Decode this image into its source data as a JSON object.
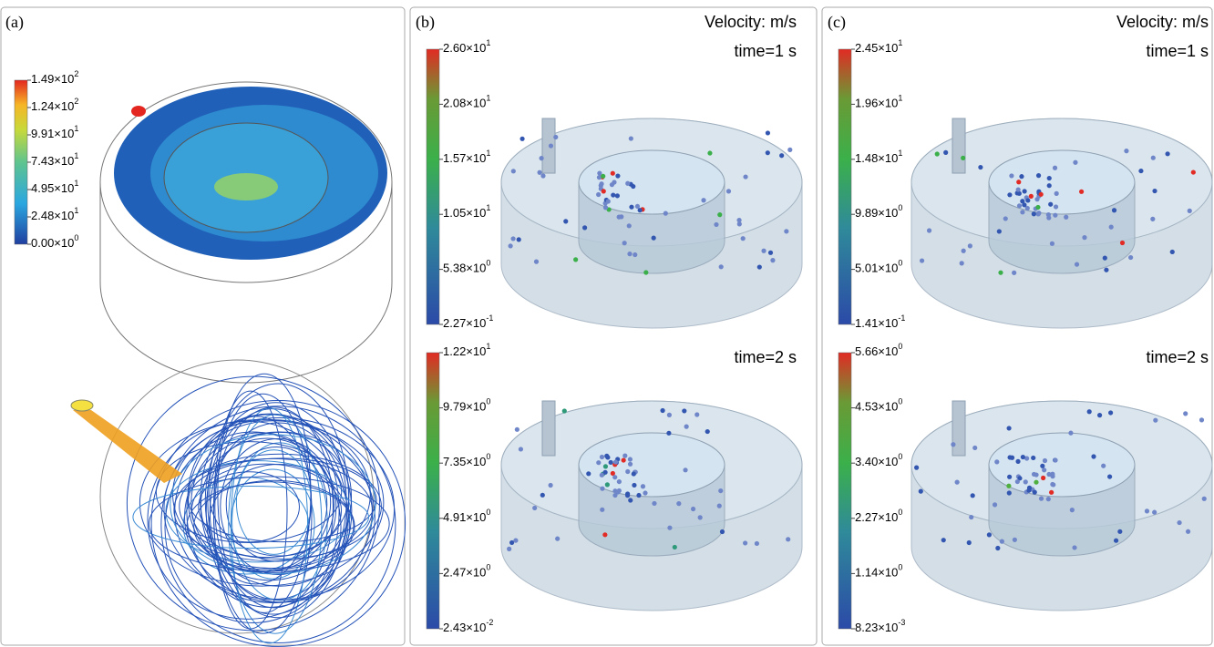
{
  "panels": [
    {
      "label": "(a)",
      "colorbar": [
        {
          "mantissa": "1.49×10",
          "exponent": "2"
        },
        {
          "mantissa": "1.24×10",
          "exponent": "2"
        },
        {
          "mantissa": "9.91×10",
          "exponent": "1"
        },
        {
          "mantissa": "7.43×10",
          "exponent": "1"
        },
        {
          "mantissa": "4.95×10",
          "exponent": "1"
        },
        {
          "mantissa": "2.48×10",
          "exponent": "1"
        },
        {
          "mantissa": "0.00×10",
          "exponent": "0"
        }
      ]
    },
    {
      "label": "(b)",
      "unit": "Velocity: m/s",
      "plots": [
        {
          "time": "time=1 s",
          "colorbar": [
            {
              "mantissa": "2.60×10",
              "exponent": "1"
            },
            {
              "mantissa": "2.08×10",
              "exponent": "1"
            },
            {
              "mantissa": "1.57×10",
              "exponent": "1"
            },
            {
              "mantissa": "1.05×10",
              "exponent": "1"
            },
            {
              "mantissa": "5.38×10",
              "exponent": "0"
            },
            {
              "mantissa": "2.27×10",
              "exponent": "-1"
            }
          ]
        },
        {
          "time": "time=2 s",
          "colorbar": [
            {
              "mantissa": "1.22×10",
              "exponent": "1"
            },
            {
              "mantissa": "9.79×10",
              "exponent": "0"
            },
            {
              "mantissa": "7.35×10",
              "exponent": "0"
            },
            {
              "mantissa": "4.91×10",
              "exponent": "0"
            },
            {
              "mantissa": "2.47×10",
              "exponent": "0"
            },
            {
              "mantissa": "2.43×10",
              "exponent": "-2"
            }
          ]
        }
      ]
    },
    {
      "label": "(c)",
      "unit": "Velocity: m/s",
      "plots": [
        {
          "time": "time=1 s",
          "colorbar": [
            {
              "mantissa": "2.45×10",
              "exponent": "1"
            },
            {
              "mantissa": "1.96×10",
              "exponent": "1"
            },
            {
              "mantissa": "1.48×10",
              "exponent": "1"
            },
            {
              "mantissa": "9.89×10",
              "exponent": "0"
            },
            {
              "mantissa": "5.01×10",
              "exponent": "0"
            },
            {
              "mantissa": "1.41×10",
              "exponent": "-1"
            }
          ]
        },
        {
          "time": "time=2 s",
          "colorbar": [
            {
              "mantissa": "5.66×10",
              "exponent": "0"
            },
            {
              "mantissa": "4.53×10",
              "exponent": "0"
            },
            {
              "mantissa": "3.40×10",
              "exponent": "0"
            },
            {
              "mantissa": "2.27×10",
              "exponent": "0"
            },
            {
              "mantissa": "1.14×10",
              "exponent": "0"
            },
            {
              "mantissa": "8.23×10",
              "exponent": "-3"
            }
          ]
        }
      ]
    }
  ]
}
